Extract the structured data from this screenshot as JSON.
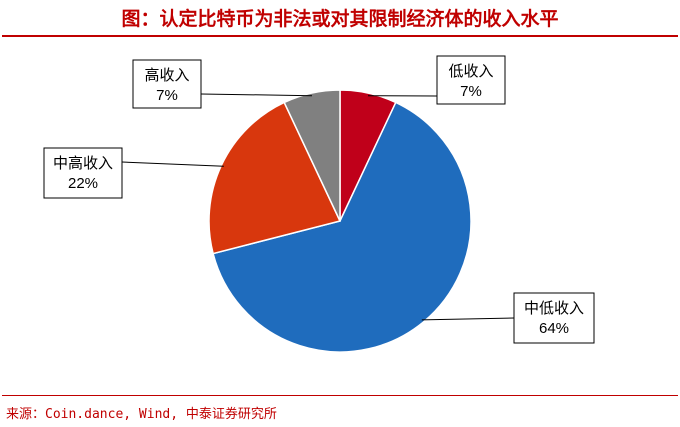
{
  "title": "图：认定比特币为非法或对其限制经济体的收入水平",
  "source": "来源：Coin.dance, Wind, 中泰证券研究所",
  "chart_data": {
    "type": "pie",
    "title": "图：认定比特币为非法或对其限制经济体的收入水平",
    "slices": [
      {
        "label": "低收入",
        "value": 7,
        "value_label": "7%",
        "color": "#c0001a"
      },
      {
        "label": "中低收入",
        "value": 64,
        "value_label": "64%",
        "color": "#1f6cbd"
      },
      {
        "label": "中高收入",
        "value": 22,
        "value_label": "22%",
        "color": "#d8370d"
      },
      {
        "label": "高收入",
        "value": 7,
        "value_label": "7%",
        "color": "#808080"
      }
    ],
    "legend": "none"
  }
}
